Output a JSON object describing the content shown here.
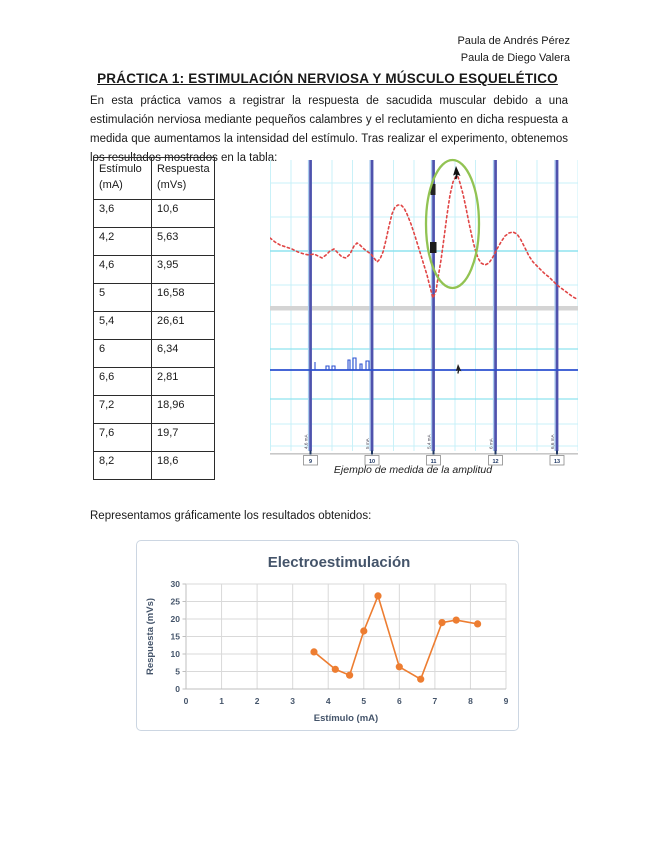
{
  "header": {
    "line1": "Paula de Andrés Pérez",
    "line2": "Paula de Diego Valera"
  },
  "title": "PRÁCTICA 1: ESTIMULACIÓN NERVIOSA Y MÚSCULO ESQUELÉTICO",
  "intro": "En esta práctica vamos a registrar la respuesta de sacudida muscular debido a una estimulación nerviosa mediante pequeños calambres y el reclutamiento en dicha respuesta a medida que aumentamos la intensidad del estímulo. Tras realizar el experimento, obtenemos los resultados mostrados en la tabla:",
  "results_intro": "Representamos gráficamente los resultados obtenidos:",
  "table": {
    "headers": [
      "Estímulo (mA)",
      "Respuesta (mVs)"
    ],
    "rows": [
      [
        "3,6",
        "10,6"
      ],
      [
        "4,2",
        "5,63"
      ],
      [
        "4,6",
        "3,95"
      ],
      [
        "5",
        "16,58"
      ],
      [
        "5,4",
        "26,61"
      ],
      [
        "6",
        "6,34"
      ],
      [
        "6,6",
        "2,81"
      ],
      [
        "7,2",
        "18,96"
      ],
      [
        "7,6",
        "19,7"
      ],
      [
        "8,2",
        "18,6"
      ]
    ]
  },
  "figure": {
    "caption": "Ejemplo de medida de la amplitud",
    "markers": [
      {
        "tag": "9",
        "comment": "4,6 mA"
      },
      {
        "tag": "10",
        "comment": "5 mA"
      },
      {
        "tag": "11",
        "comment": "5,4 mA"
      },
      {
        "tag": "12",
        "comment": "6 mA"
      },
      {
        "tag": "13",
        "comment": "6,6 mA"
      }
    ]
  },
  "chart_data": {
    "type": "line",
    "title": "Electroestimulación",
    "xlabel": "Estímulo (mA)",
    "ylabel": "Respuesta (mVs)",
    "x": [
      3.6,
      4.2,
      4.6,
      5,
      5.4,
      6,
      6.6,
      7.2,
      7.6,
      8.2
    ],
    "y": [
      10.6,
      5.63,
      3.95,
      16.58,
      26.61,
      6.34,
      2.81,
      18.96,
      19.7,
      18.6
    ],
    "xlim": [
      0,
      9
    ],
    "ylim": [
      0,
      30
    ],
    "xticks": [
      0,
      1,
      2,
      3,
      4,
      5,
      6,
      7,
      8,
      9
    ],
    "yticks": [
      0,
      5,
      10,
      15,
      20,
      25,
      30
    ],
    "grid": true,
    "legend": "none",
    "line_color": "#ED7D31"
  },
  "colors": {
    "text": "#1A1A1A",
    "chart_title": "#44546A",
    "chart_tick": "#44546A",
    "chart_grid": "#D9D9D9",
    "chart_axis": "#BFBFBF",
    "accent_orange": "#ED7D31",
    "osc_grid": "#C9F1F8",
    "osc_grid_major": "#8FE3EF",
    "osc_bar": "#4F52AD",
    "osc_bar_edge": "#A9CBEE",
    "osc_trace": "#E04545",
    "osc_channel": "#2B50D0",
    "osc_ellipse": "#92C353",
    "osc_separator": "#D4D4D4",
    "osc_tag_text": "#1F3864"
  }
}
